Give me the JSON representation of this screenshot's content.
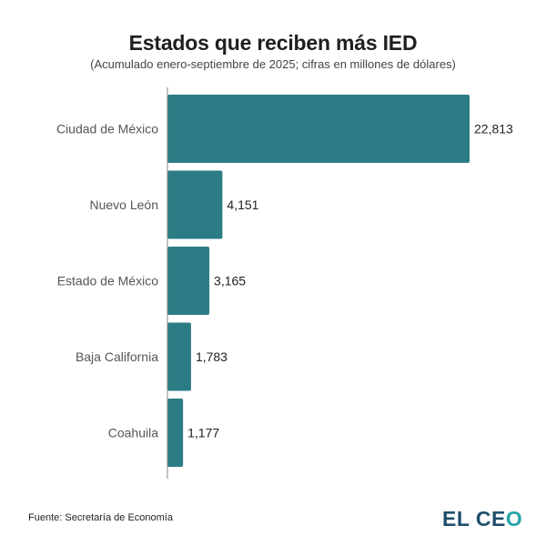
{
  "header": {
    "title": "Estados que reciben más IED",
    "subtitle": "(Acumulado enero-septiembre de 2025; cifras en millones de dólares)"
  },
  "footer": {
    "source": "Fuente: Secretaría de Economía",
    "logo_main": "EL CE",
    "logo_accent": "O"
  },
  "colors": {
    "bar": "#2c7c85",
    "axis": "#888888"
  },
  "chart_data": {
    "type": "bar",
    "orientation": "horizontal",
    "title": "Estados que reciben más IED",
    "subtitle": "(Acumulado enero-septiembre de 2025; cifras en millones de dólares)",
    "xlabel": "",
    "ylabel": "",
    "categories": [
      "Ciudad de México",
      "Nuevo León",
      "Estado de México",
      "Baja California",
      "Coahuila"
    ],
    "values": [
      22813,
      4151,
      3165,
      1783,
      1177
    ],
    "value_labels": [
      "22,813",
      "4,151",
      "3,165",
      "1,783",
      "1,177"
    ],
    "xlim": [
      0,
      22813
    ],
    "grid": false,
    "legend": "none"
  }
}
